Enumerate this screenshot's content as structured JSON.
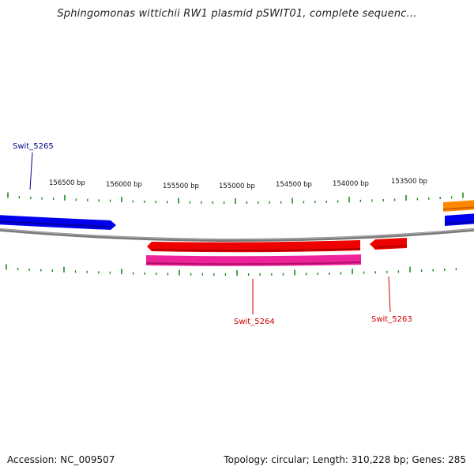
{
  "title": "Sphingomonas wittichii RW1 plasmid pSWIT01, complete sequenc...",
  "footer": {
    "accession": "Accession: NC_009507",
    "summary": "Topology: circular; Length: 310,228 bp; Genes: 285"
  },
  "ruler": {
    "labels": [
      "156500 bp",
      "156000 bp",
      "155500 bp",
      "155000 bp",
      "154500 bp",
      "154000 bp",
      "153500 bp"
    ]
  },
  "genes": [
    {
      "name": "Swit_5265",
      "color": "#00008b"
    },
    {
      "name": "Swit_5264",
      "color": "#cc0000"
    },
    {
      "name": "Swit_5263",
      "color": "#cc0000"
    }
  ],
  "colors": {
    "blue": "#0000ee",
    "red": "#ee0000",
    "magenta": "#ee2299",
    "orange": "#ff8800",
    "backbone": "#808080",
    "tick": "#1a8a1a"
  }
}
